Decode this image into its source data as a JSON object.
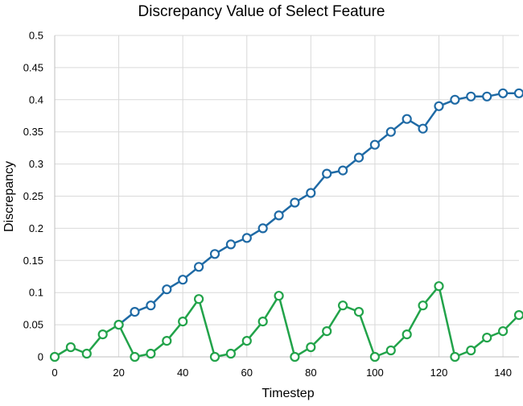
{
  "chart_data": {
    "type": "line",
    "title": "Discrepancy Value of Select Feature",
    "xlabel": "Timestep",
    "ylabel": "Discrepancy",
    "xlim": [
      0,
      145
    ],
    "ylim": [
      0,
      0.5
    ],
    "xticks": [
      "0",
      "20",
      "40",
      "60",
      "80",
      "100",
      "120",
      "140"
    ],
    "yticks": [
      "0",
      "0.05",
      "0.1",
      "0.15",
      "0.2",
      "0.25",
      "0.3",
      "0.35",
      "0.4",
      "0.45",
      "0.5"
    ],
    "grid": true,
    "legend": "none",
    "x": [
      0,
      5,
      10,
      15,
      20,
      25,
      30,
      35,
      40,
      45,
      50,
      55,
      60,
      65,
      70,
      75,
      80,
      85,
      90,
      95,
      100,
      105,
      110,
      115,
      120,
      125,
      130,
      135,
      140,
      145
    ],
    "series": [
      {
        "color": "#1f6aa5",
        "x": [
          20,
          25,
          30,
          35,
          40,
          45,
          50,
          55,
          60,
          65,
          70,
          75,
          80,
          85,
          90,
          95,
          100,
          105,
          110,
          115,
          120,
          125,
          130,
          135,
          140,
          145
        ],
        "values": [
          0.05,
          0.07,
          0.08,
          0.105,
          0.12,
          0.14,
          0.16,
          0.175,
          0.185,
          0.2,
          0.22,
          0.24,
          0.255,
          0.285,
          0.29,
          0.31,
          0.33,
          0.35,
          0.37,
          0.355,
          0.39,
          0.4,
          0.405,
          0.405,
          0.41,
          0.41
        ]
      },
      {
        "color": "#22a34a",
        "x": [
          0,
          5,
          10,
          15,
          20,
          25,
          30,
          35,
          40,
          45,
          50,
          55,
          60,
          65,
          70,
          75,
          80,
          85,
          90,
          95,
          100,
          105,
          110,
          115,
          120,
          125,
          130,
          135,
          140,
          145
        ],
        "values": [
          0,
          0.015,
          0.005,
          0.035,
          0.05,
          0,
          0.005,
          0.025,
          0.055,
          0.09,
          0,
          0.005,
          0.025,
          0.055,
          0.095,
          0,
          0.015,
          0.04,
          0.08,
          0.07,
          0,
          0.01,
          0.035,
          0.08,
          0.11,
          0,
          0.01,
          0.03,
          0.04,
          0.065
        ]
      }
    ],
    "gridColor": "#d9d9d9",
    "axisColor": "#bfbfbf"
  }
}
